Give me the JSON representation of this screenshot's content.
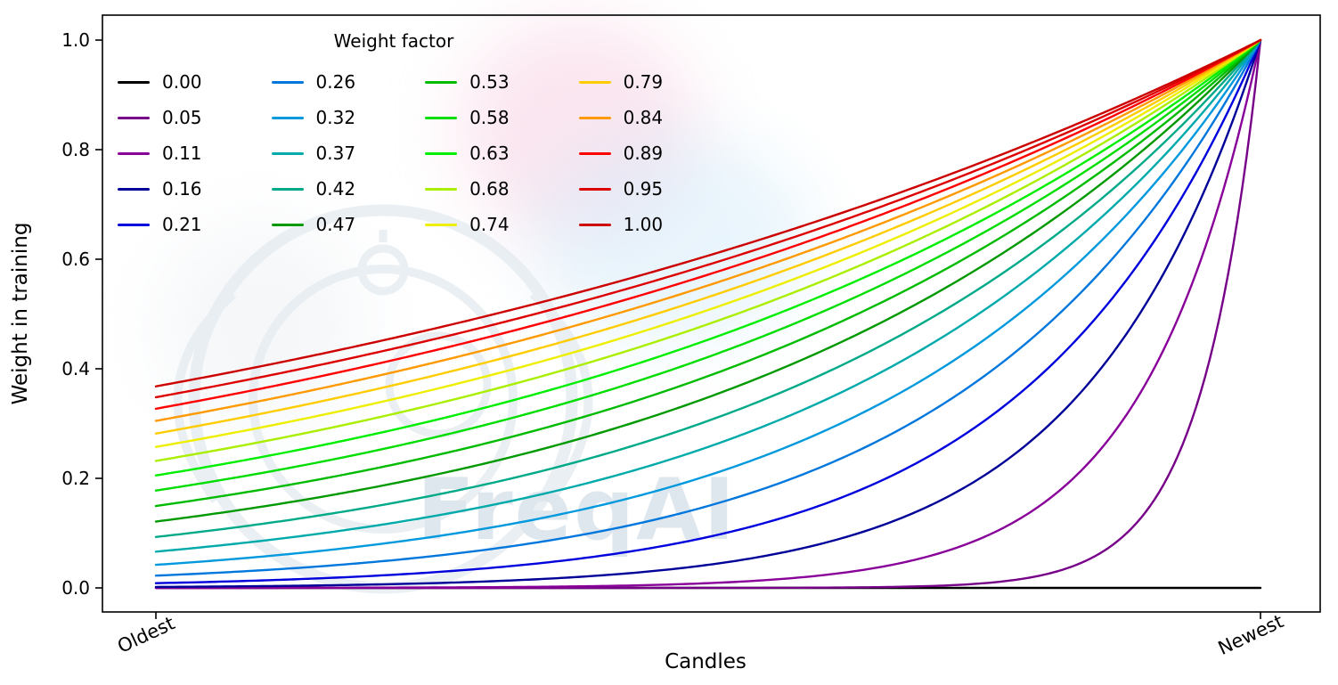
{
  "figure": {
    "watermark_text": "FreqAI"
  },
  "chart_data": {
    "type": "line",
    "title": "",
    "xlabel": "Candles",
    "ylabel": "Weight in training",
    "x_tick_labels": [
      "Oldest",
      "Newest"
    ],
    "x_tick_positions": [
      0,
      1
    ],
    "y_ticks": [
      0,
      0.2,
      0.4,
      0.6,
      0.8,
      1.0
    ],
    "y_tick_labels": [
      "0.0",
      "0.2",
      "0.4",
      "0.6",
      "0.8",
      "1.0"
    ],
    "xlim": [
      -0.048,
      1.054
    ],
    "ylim": [
      -0.045,
      1.045
    ],
    "grid": false,
    "legend": {
      "title": "Weight factor",
      "location": "upper left",
      "columns": 4,
      "frame": false
    },
    "formula": "weight(x) = exp(-(1 - x) / factor) for factor > 0; flat at 0 for factor = 0; x runs 0 (Oldest) to 1 (Newest); all curves converge to 1.0 at Newest",
    "sample_x": [
      0,
      0.25,
      0.5,
      0.75,
      1
    ],
    "series": [
      {
        "label": "0.00",
        "factor": 0.0,
        "color": "#000000",
        "values": [
          0,
          0,
          0,
          0,
          0
        ]
      },
      {
        "label": "0.05",
        "factor": 0.0526,
        "color": "#770088",
        "values": [
          0,
          0,
          0,
          0.009,
          1
        ]
      },
      {
        "label": "0.11",
        "factor": 0.1053,
        "color": "#880099",
        "values": [
          0,
          0.001,
          0.009,
          0.093,
          1
        ]
      },
      {
        "label": "0.16",
        "factor": 0.1579,
        "color": "#000099",
        "values": [
          0.002,
          0.009,
          0.042,
          0.205,
          1
        ]
      },
      {
        "label": "0.21",
        "factor": 0.2105,
        "color": "#0000dd",
        "values": [
          0.009,
          0.028,
          0.093,
          0.305,
          1
        ]
      },
      {
        "label": "0.26",
        "factor": 0.2632,
        "color": "#0077dd",
        "values": [
          0.022,
          0.058,
          0.15,
          0.387,
          1
        ]
      },
      {
        "label": "0.32",
        "factor": 0.3158,
        "color": "#0099dd",
        "values": [
          0.042,
          0.093,
          0.205,
          0.453,
          1
        ]
      },
      {
        "label": "0.37",
        "factor": 0.3684,
        "color": "#00aaaa",
        "values": [
          0.066,
          0.131,
          0.257,
          0.507,
          1
        ]
      },
      {
        "label": "0.42",
        "factor": 0.4211,
        "color": "#00aa88",
        "values": [
          0.093,
          0.168,
          0.305,
          0.552,
          1
        ]
      },
      {
        "label": "0.47",
        "factor": 0.4737,
        "color": "#009900",
        "values": [
          0.121,
          0.205,
          0.348,
          0.59,
          1
        ]
      },
      {
        "label": "0.53",
        "factor": 0.5263,
        "color": "#00bb00",
        "values": [
          0.15,
          0.241,
          0.387,
          0.622,
          1
        ]
      },
      {
        "label": "0.58",
        "factor": 0.5789,
        "color": "#00dd00",
        "values": [
          0.178,
          0.274,
          0.422,
          0.649,
          1
        ]
      },
      {
        "label": "0.63",
        "factor": 0.6316,
        "color": "#00ee00",
        "values": [
          0.205,
          0.305,
          0.453,
          0.673,
          1
        ]
      },
      {
        "label": "0.68",
        "factor": 0.6842,
        "color": "#aaee00",
        "values": [
          0.232,
          0.334,
          0.482,
          0.694,
          1
        ]
      },
      {
        "label": "0.74",
        "factor": 0.7368,
        "color": "#eeee00",
        "values": [
          0.257,
          0.361,
          0.507,
          0.712,
          1
        ]
      },
      {
        "label": "0.79",
        "factor": 0.7895,
        "color": "#ffcc00",
        "values": [
          0.282,
          0.387,
          0.531,
          0.729,
          1
        ]
      },
      {
        "label": "0.84",
        "factor": 0.8421,
        "color": "#ff9900",
        "values": [
          0.305,
          0.41,
          0.552,
          0.743,
          1
        ]
      },
      {
        "label": "0.89",
        "factor": 0.8947,
        "color": "#ff0000",
        "values": [
          0.327,
          0.433,
          0.572,
          0.756,
          1
        ]
      },
      {
        "label": "0.95",
        "factor": 0.9474,
        "color": "#dd0000",
        "values": [
          0.348,
          0.453,
          0.59,
          0.768,
          1
        ]
      },
      {
        "label": "1.00",
        "factor": 1.0,
        "color": "#cc0000",
        "values": [
          0.368,
          0.472,
          0.607,
          0.779,
          1
        ]
      }
    ]
  }
}
